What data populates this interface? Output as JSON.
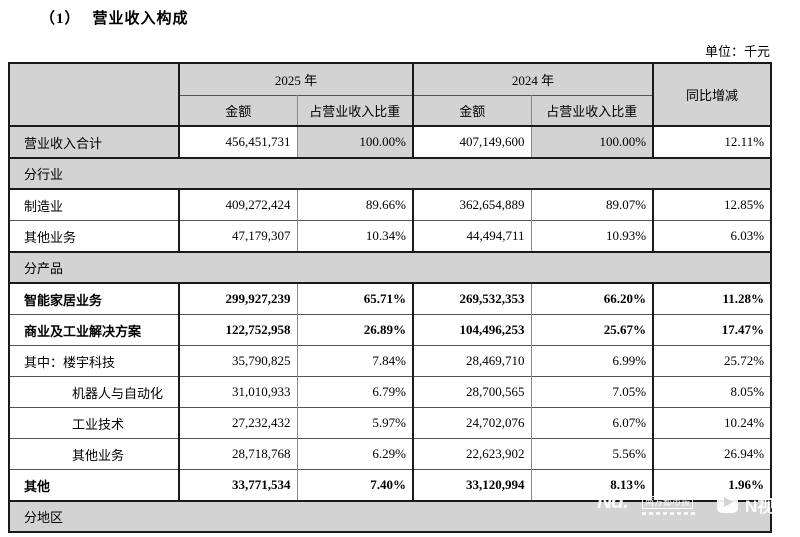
{
  "page": {
    "title_index": "（1）",
    "title_text": "营业收入构成",
    "unit_label": "单位：千元"
  },
  "table": {
    "headers": {
      "year_2025": "2025 年",
      "year_2024": "2024 年",
      "yoy": "同比增减",
      "amount": "金额",
      "share": "占营业收入比重"
    },
    "rows": [
      {
        "type": "data",
        "label": "营业收入合计",
        "bold": false,
        "indent": false,
        "thick": true,
        "label_gray": true,
        "share_gray": true,
        "values": [
          "456,451,731",
          "100.00%",
          "407,149,600",
          "100.00%",
          "12.11%"
        ]
      },
      {
        "type": "section",
        "label": "分行业"
      },
      {
        "type": "data",
        "label": "制造业",
        "bold": false,
        "indent": false,
        "values": [
          "409,272,424",
          "89.66%",
          "362,654,889",
          "89.07%",
          "12.85%"
        ]
      },
      {
        "type": "data",
        "label": "其他业务",
        "bold": false,
        "indent": false,
        "values": [
          "47,179,307",
          "10.34%",
          "44,494,711",
          "10.93%",
          "6.03%"
        ]
      },
      {
        "type": "section",
        "label": "分产品"
      },
      {
        "type": "data",
        "label": "智能家居业务",
        "bold": true,
        "indent": false,
        "values": [
          "299,927,239",
          "65.71%",
          "269,532,353",
          "66.20%",
          "11.28%"
        ]
      },
      {
        "type": "data",
        "label": "商业及工业解决方案",
        "bold": true,
        "indent": false,
        "values": [
          "122,752,958",
          "26.89%",
          "104,496,253",
          "25.67%",
          "17.47%"
        ]
      },
      {
        "type": "data",
        "label": "其中：楼宇科技",
        "bold": false,
        "indent": false,
        "values": [
          "35,790,825",
          "7.84%",
          "28,469,710",
          "6.99%",
          "25.72%"
        ]
      },
      {
        "type": "data",
        "label": "机器人与自动化",
        "bold": false,
        "indent": true,
        "values": [
          "31,010,933",
          "6.79%",
          "28,700,565",
          "7.05%",
          "8.05%"
        ]
      },
      {
        "type": "data",
        "label": "工业技术",
        "bold": false,
        "indent": true,
        "values": [
          "27,232,432",
          "5.97%",
          "24,702,076",
          "6.07%",
          "10.24%"
        ]
      },
      {
        "type": "data",
        "label": "其他业务",
        "bold": false,
        "indent": true,
        "values": [
          "28,718,768",
          "6.29%",
          "22,623,902",
          "5.56%",
          "26.94%"
        ]
      },
      {
        "type": "data",
        "label": "其他",
        "bold": true,
        "indent": false,
        "values": [
          "33,771,534",
          "7.40%",
          "33,120,994",
          "8.13%",
          "1.96%"
        ]
      },
      {
        "type": "section",
        "label": "分地区"
      }
    ]
  },
  "watermark": {
    "nd_logo": "Nd.",
    "nd_name": "南方都市报",
    "nvideo_name": "N视频"
  }
}
